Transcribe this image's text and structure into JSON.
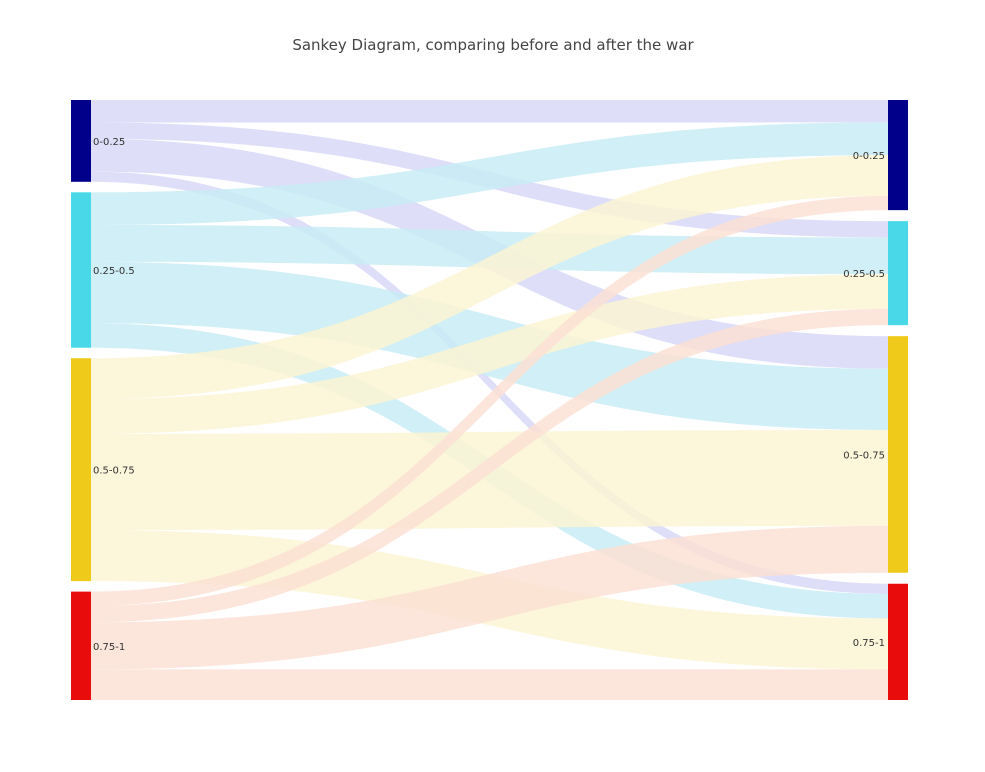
{
  "chart_data": {
    "type": "sankey",
    "title": "Sankey Diagram, comparing before and after the war",
    "nodes": [
      {
        "id": "L0",
        "label": "0-0.25",
        "column": "before",
        "color": "#00008b"
      },
      {
        "id": "L1",
        "label": "0.25-0.5",
        "column": "before",
        "color": "#48d8e8"
      },
      {
        "id": "L2",
        "label": "0.5-0.75",
        "column": "before",
        "color": "#f0ca1a"
      },
      {
        "id": "L3",
        "label": "0.75-1",
        "column": "before",
        "color": "#e80c0c"
      },
      {
        "id": "R0",
        "label": "0-0.25",
        "column": "after",
        "color": "#00008b"
      },
      {
        "id": "R1",
        "label": "0.25-0.5",
        "column": "after",
        "color": "#48d8e8"
      },
      {
        "id": "R2",
        "label": "0.5-0.75",
        "column": "after",
        "color": "#f0ca1a"
      },
      {
        "id": "R3",
        "label": "0.75-1",
        "column": "after",
        "color": "#e80c0c"
      }
    ],
    "links": [
      {
        "source": "L0",
        "target": "R0",
        "value": 11,
        "color": "#d8d8f8"
      },
      {
        "source": "L0",
        "target": "R1",
        "value": 8,
        "color": "#d8d8f8"
      },
      {
        "source": "L0",
        "target": "R2",
        "value": 16,
        "color": "#d8d8f8"
      },
      {
        "source": "L0",
        "target": "R3",
        "value": 5,
        "color": "#d8d8f8"
      },
      {
        "source": "L1",
        "target": "R0",
        "value": 16,
        "color": "#c8ecf4"
      },
      {
        "source": "L1",
        "target": "R1",
        "value": 18,
        "color": "#c8ecf4"
      },
      {
        "source": "L1",
        "target": "R2",
        "value": 30,
        "color": "#c8ecf4"
      },
      {
        "source": "L1",
        "target": "R3",
        "value": 12,
        "color": "#c8ecf4"
      },
      {
        "source": "L2",
        "target": "R0",
        "value": 20,
        "color": "#fbf4d4"
      },
      {
        "source": "L2",
        "target": "R1",
        "value": 17,
        "color": "#fbf4d4"
      },
      {
        "source": "L2",
        "target": "R2",
        "value": 47,
        "color": "#fbf4d4"
      },
      {
        "source": "L2",
        "target": "R3",
        "value": 25,
        "color": "#fbf4d4"
      },
      {
        "source": "L3",
        "target": "R0",
        "value": 7,
        "color": "#fce0d4"
      },
      {
        "source": "L3",
        "target": "R1",
        "value": 8,
        "color": "#fce0d4"
      },
      {
        "source": "L3",
        "target": "R2",
        "value": 23,
        "color": "#fce0d4"
      },
      {
        "source": "L3",
        "target": "R3",
        "value": 15,
        "color": "#fce0d4"
      }
    ]
  }
}
